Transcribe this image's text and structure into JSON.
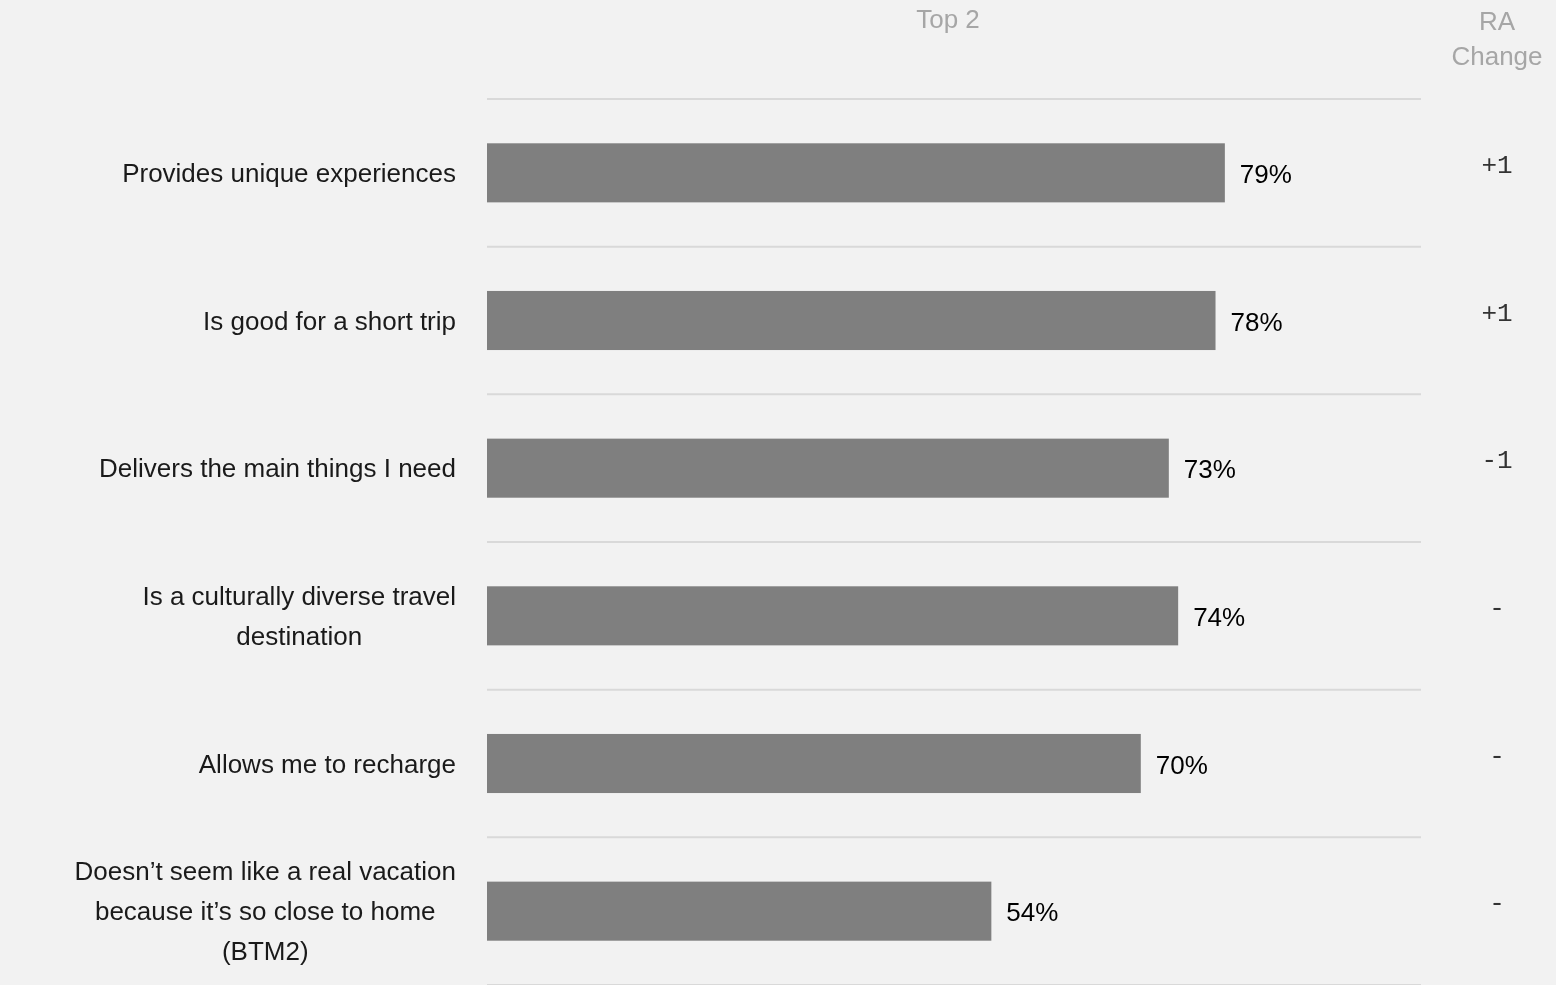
{
  "chart_data": {
    "type": "bar",
    "orientation": "horizontal",
    "title": "Top 2",
    "categories": [
      "Provides unique experiences",
      "Is good for a short trip",
      "Delivers the main things I need",
      "Is a culturally diverse travel destination",
      "Allows me to recharge",
      "Doesn’t seem like a real vacation because it’s so close to home (BTM2)"
    ],
    "values": [
      79,
      78,
      73,
      74,
      70,
      54
    ],
    "value_labels": [
      "79%",
      "78%",
      "73%",
      "74%",
      "70%",
      "54%"
    ],
    "color": "#7f7f7f",
    "xlim": [
      0,
      100
    ],
    "tick_labels": "y",
    "grid": "y",
    "annotations": [
      "RA Change",
      "+1",
      "+1",
      "-1",
      "-",
      "-",
      "-"
    ]
  }
}
